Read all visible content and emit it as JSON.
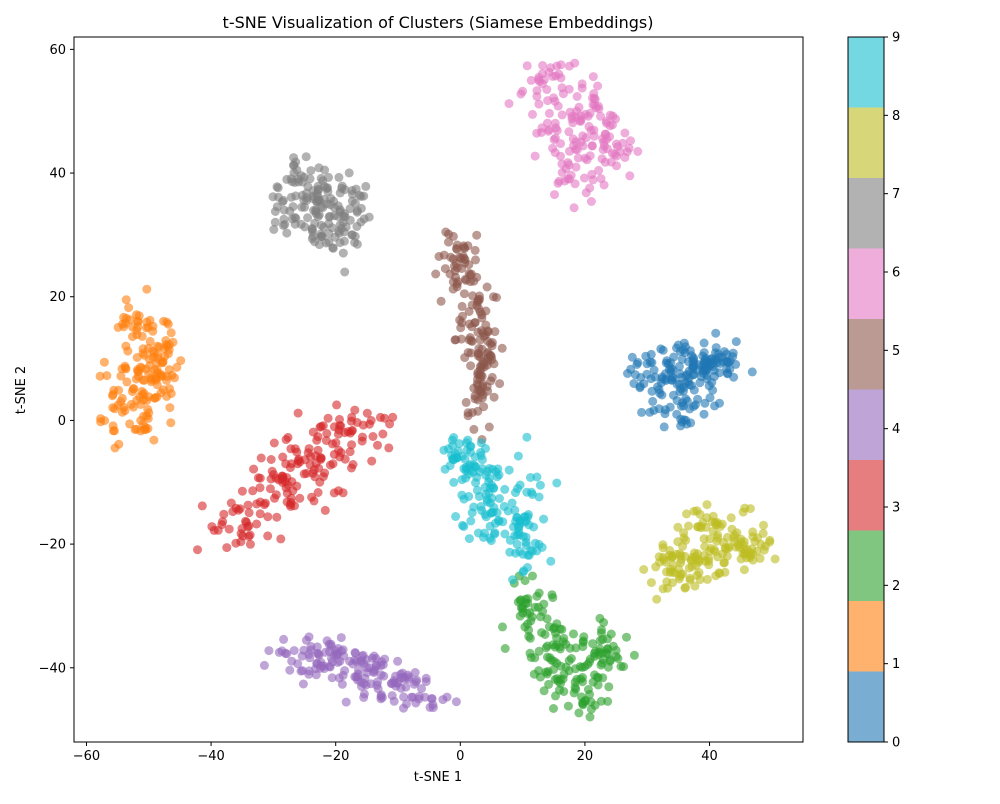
{
  "chart_data": {
    "type": "scatter",
    "title": "t-SNE Visualization of Clusters (Siamese Embeddings)",
    "xlabel": "t-SNE 1",
    "ylabel": "t-SNE 2",
    "xlim": [
      -62,
      55
    ],
    "ylim": [
      -52,
      62
    ],
    "x_ticks": [
      -60,
      -40,
      -20,
      0,
      20,
      40
    ],
    "y_ticks": [
      -40,
      -20,
      0,
      20,
      40,
      60
    ],
    "x_tick_labels": [
      "−60",
      "−40",
      "−20",
      "0",
      "20",
      "40"
    ],
    "y_tick_labels": [
      "−40",
      "−20",
      "0",
      "20",
      "40",
      "60"
    ],
    "grid": false,
    "colormap": "tab10",
    "marker_alpha": 0.6,
    "colorbar": {
      "min": 0,
      "max": 9,
      "ticks": [
        0,
        1,
        2,
        3,
        4,
        5,
        6,
        7,
        8,
        9
      ],
      "tick_labels": [
        "0",
        "1",
        "2",
        "3",
        "4",
        "5",
        "6",
        "7",
        "8",
        "9"
      ],
      "colors": [
        "#1f77b4",
        "#ff7f0e",
        "#2ca02c",
        "#d62728",
        "#9467bd",
        "#8c564b",
        "#e377c2",
        "#7f7f7f",
        "#bcbd22",
        "#17becf"
      ]
    },
    "clusters": [
      {
        "label": 0,
        "center": [
          37,
          7
        ],
        "spread": [
          5,
          4
        ],
        "points": [
          [
            28,
            6
          ],
          [
            30,
            11
          ],
          [
            32,
            5
          ],
          [
            34,
            9
          ],
          [
            36,
            13
          ],
          [
            38,
            8
          ],
          [
            40,
            11
          ],
          [
            42,
            7
          ],
          [
            44,
            11
          ],
          [
            35,
            3
          ],
          [
            37,
            0
          ],
          [
            30,
            1
          ],
          [
            39,
            13
          ],
          [
            41,
            3
          ],
          [
            33,
            6
          ],
          [
            43,
            10
          ],
          [
            36,
            8
          ],
          [
            40,
            6
          ]
        ]
      },
      {
        "label": 1,
        "center": [
          -51,
          8
        ],
        "spread": [
          3,
          8
        ],
        "points": [
          [
            -56,
            6
          ],
          [
            -55,
            -2
          ],
          [
            -54,
            2
          ],
          [
            -53,
            14
          ],
          [
            -52,
            18
          ],
          [
            -51,
            11
          ],
          [
            -50,
            16
          ],
          [
            -49,
            4
          ],
          [
            -48,
            14
          ],
          [
            -47,
            7
          ],
          [
            -46,
            13
          ],
          [
            -53,
            8
          ],
          [
            -50,
            1
          ],
          [
            -52,
            -2
          ],
          [
            -48,
            3
          ],
          [
            -49,
            10
          ]
        ]
      },
      {
        "label": 2,
        "center": [
          16,
          -37
        ],
        "spread": [
          5,
          6
        ],
        "points": [
          [
            10,
            -27
          ],
          [
            11,
            -33
          ],
          [
            12,
            -29
          ],
          [
            13,
            -31
          ],
          [
            14,
            -36
          ],
          [
            15,
            -42
          ],
          [
            16,
            -38
          ],
          [
            17,
            -34
          ],
          [
            18,
            -41
          ],
          [
            19,
            -46
          ],
          [
            20,
            -43
          ],
          [
            21,
            -37
          ],
          [
            22,
            -39
          ],
          [
            23,
            -36
          ],
          [
            25,
            -34
          ],
          [
            20,
            -46
          ],
          [
            14,
            -43
          ]
        ]
      },
      {
        "label": 3,
        "center": [
          -25,
          -9
        ],
        "spread": [
          10,
          5
        ],
        "points": [
          [
            -37,
            -19
          ],
          [
            -35,
            -16
          ],
          [
            -33,
            -13
          ],
          [
            -31,
            -11
          ],
          [
            -29,
            -9
          ],
          [
            -27,
            -12
          ],
          [
            -26,
            -8
          ],
          [
            -24,
            -5
          ],
          [
            -22,
            -7
          ],
          [
            -20,
            -4
          ],
          [
            -19,
            -1
          ],
          [
            -17,
            -2
          ],
          [
            -15,
            0
          ],
          [
            -35,
            -18
          ],
          [
            -29,
            -14
          ],
          [
            -23,
            -6
          ],
          [
            -18,
            1
          ]
        ]
      },
      {
        "label": 4,
        "center": [
          -15,
          -41
        ],
        "spread": [
          8,
          3
        ],
        "points": [
          [
            -27,
            -36
          ],
          [
            -26,
            -41
          ],
          [
            -24,
            -38
          ],
          [
            -22,
            -36
          ],
          [
            -21,
            -40
          ],
          [
            -19,
            -38
          ],
          [
            -17,
            -42
          ],
          [
            -15,
            -38
          ],
          [
            -14,
            -44
          ],
          [
            -12,
            -42
          ],
          [
            -10,
            -43
          ],
          [
            -8,
            -41
          ],
          [
            -6,
            -45
          ],
          [
            -5,
            -47
          ],
          [
            -20,
            -42
          ],
          [
            -13,
            -39
          ]
        ]
      },
      {
        "label": 5,
        "center": [
          3,
          12
        ],
        "spread": [
          3,
          8
        ],
        "points": [
          [
            -2,
            25
          ],
          [
            -1,
            28
          ],
          [
            0,
            22
          ],
          [
            1,
            27
          ],
          [
            2,
            19
          ],
          [
            3,
            16
          ],
          [
            4,
            13
          ],
          [
            5,
            10
          ],
          [
            3,
            7
          ],
          [
            2,
            3
          ],
          [
            3,
            0
          ],
          [
            5,
            21
          ],
          [
            0,
            15
          ],
          [
            2,
            9
          ],
          [
            6,
            3
          ],
          [
            1,
            24
          ]
        ]
      },
      {
        "label": 6,
        "center": [
          20,
          46
        ],
        "spread": [
          4,
          6
        ],
        "points": [
          [
            11,
            52
          ],
          [
            13,
            55
          ],
          [
            15,
            56
          ],
          [
            17,
            52
          ],
          [
            19,
            49
          ],
          [
            21,
            53
          ],
          [
            23,
            47
          ],
          [
            25,
            44
          ],
          [
            27,
            43
          ],
          [
            16,
            41
          ],
          [
            18,
            39
          ],
          [
            20,
            37
          ],
          [
            22,
            44
          ],
          [
            14,
            47
          ],
          [
            24,
            48
          ],
          [
            19,
            44
          ]
        ]
      },
      {
        "label": 7,
        "center": [
          -21,
          33
        ],
        "spread": [
          4,
          5
        ],
        "points": [
          [
            -29,
            30
          ],
          [
            -27,
            39
          ],
          [
            -26,
            41
          ],
          [
            -25,
            35
          ],
          [
            -24,
            31
          ],
          [
            -23,
            36
          ],
          [
            -22,
            41
          ],
          [
            -21,
            28
          ],
          [
            -20,
            33
          ],
          [
            -19,
            26
          ],
          [
            -18,
            37
          ],
          [
            -17,
            32
          ],
          [
            -16,
            38
          ],
          [
            -20,
            29
          ],
          [
            -24,
            38
          ],
          [
            -27,
            33
          ]
        ]
      },
      {
        "label": 8,
        "center": [
          40,
          -21
        ],
        "spread": [
          6,
          4
        ],
        "points": [
          [
            31,
            -21
          ],
          [
            33,
            -27
          ],
          [
            34,
            -23
          ],
          [
            36,
            -20
          ],
          [
            37,
            -25
          ],
          [
            38,
            -18
          ],
          [
            39,
            -14
          ],
          [
            40,
            -22
          ],
          [
            41,
            -17
          ],
          [
            42,
            -26
          ],
          [
            43,
            -15
          ],
          [
            44,
            -20
          ],
          [
            46,
            -22
          ],
          [
            48,
            -19
          ],
          [
            49,
            -19
          ],
          [
            39,
            -26
          ]
        ]
      },
      {
        "label": 9,
        "center": [
          6,
          -12
        ],
        "spread": [
          4,
          7
        ],
        "points": [
          [
            -1,
            -4
          ],
          [
            0,
            -7
          ],
          [
            1,
            -3
          ],
          [
            2,
            -10
          ],
          [
            3,
            -5
          ],
          [
            4,
            -13
          ],
          [
            5,
            -9
          ],
          [
            3,
            -17
          ],
          [
            6,
            -14
          ],
          [
            7,
            -18
          ],
          [
            8,
            -6
          ],
          [
            9,
            -20
          ],
          [
            10,
            -16
          ],
          [
            11,
            -24
          ],
          [
            12,
            -8
          ],
          [
            13,
            -22
          ],
          [
            1,
            -17
          ]
        ]
      }
    ]
  }
}
